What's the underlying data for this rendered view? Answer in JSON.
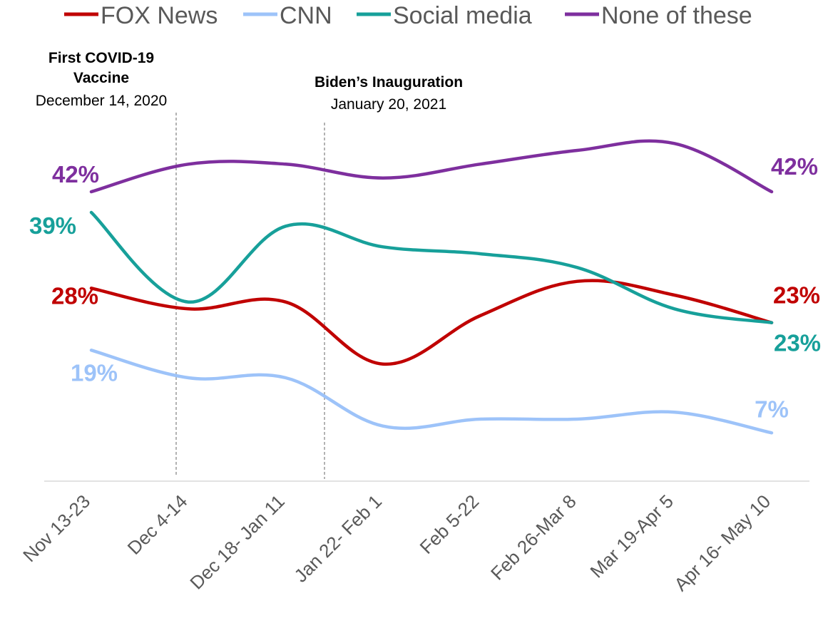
{
  "chart_data": {
    "type": "line",
    "categories": [
      "Nov 13-23",
      "Dec 4-14",
      "Dec 18- Jan 11",
      "Jan 22- Feb 1",
      "Feb 5-22",
      "Feb 26-Mar 8",
      "Mar 19-Apr 5",
      "Apr 16- May 10"
    ],
    "ylim": [
      0,
      60
    ],
    "grid": false,
    "legend": "top",
    "series": [
      {
        "name": "FOX News",
        "color": "#C00000",
        "values": [
          28,
          25,
          26,
          17,
          24,
          29,
          27,
          23
        ],
        "start_label": "28%",
        "end_label": "23%"
      },
      {
        "name": "CNN",
        "color": "#9DC3F9",
        "values": [
          19,
          15,
          15,
          8,
          9,
          9,
          10,
          7
        ],
        "start_label": "19%",
        "end_label": "7%"
      },
      {
        "name": "Social media",
        "color": "#17A09A",
        "values": [
          39,
          26,
          37,
          34,
          33,
          31,
          25,
          23
        ],
        "start_label": "39%",
        "end_label": "23%"
      },
      {
        "name": "None of these",
        "color": "#7E2F9E",
        "values": [
          42,
          46,
          46,
          44,
          46,
          48,
          49,
          42
        ],
        "start_label": "42%",
        "end_label": "42%"
      }
    ],
    "annotations": [
      {
        "title_line1": "First COVID-19",
        "title_line2": "Vaccine",
        "date": "December 14, 2020"
      },
      {
        "title_line1": "Biden’s Inauguration",
        "title_line2": "",
        "date": "January 20, 2021"
      }
    ]
  }
}
